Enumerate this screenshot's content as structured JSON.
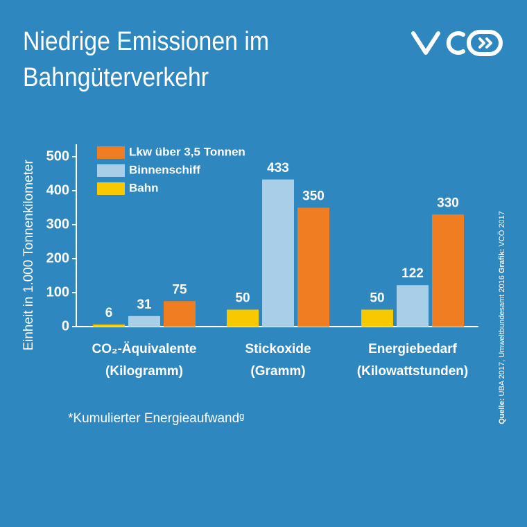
{
  "chart_data": {
    "type": "bar",
    "title": [
      "Niedrige Emissionen im",
      "Bahngüterverkehr"
    ],
    "y_label": "Einheit in 1.000 Tonnenkilometer",
    "categories": [
      "CO₂-Äquivalente",
      "Stickoxide",
      "Energiebedarf"
    ],
    "category_units": [
      "(Kilogramm)",
      "(Gramm)",
      "(Kilowattstunden)"
    ],
    "series": [
      {
        "name": "Lkw über 3,5 Tonnen",
        "color": "#f07d22",
        "values": [
          75,
          350,
          330
        ]
      },
      {
        "name": "Binnenschiff",
        "color": "#a9cfe8",
        "values": [
          31,
          433,
          122
        ]
      },
      {
        "name": "Bahn",
        "color": "#f9c900",
        "values": [
          6,
          50,
          50
        ]
      }
    ],
    "ylim": [
      0,
      500
    ],
    "yticks": [
      0,
      100,
      200,
      300,
      400,
      500
    ],
    "footnote": "*Kumulierter Energieaufwandᵍ",
    "source_label": "Quelle:",
    "source": "UBA 2017, Umweltbundesamt 2016",
    "credit_label": "Grafik:",
    "credit": "VCÖ 2017"
  }
}
